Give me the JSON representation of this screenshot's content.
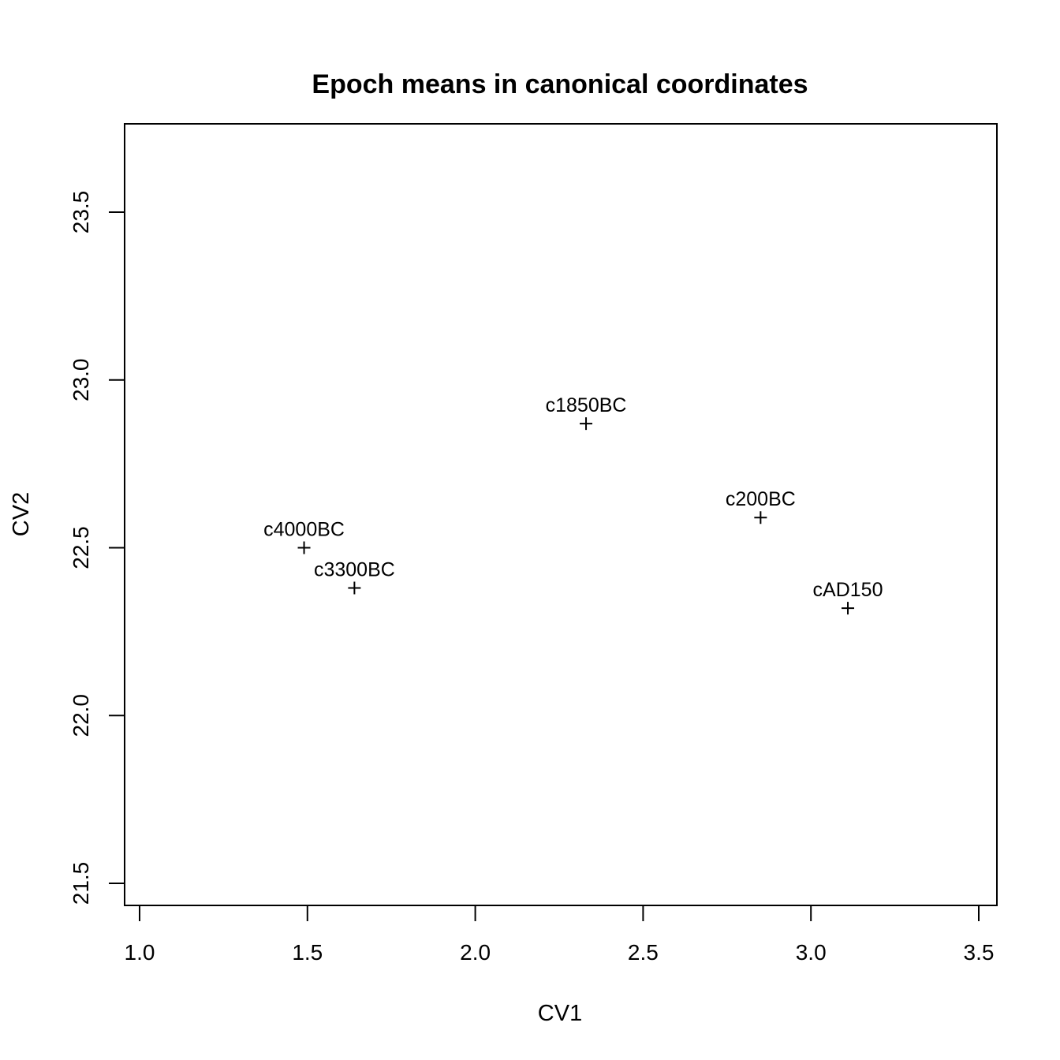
{
  "chart_data": {
    "type": "scatter",
    "title": "Epoch means in canonical coordinates",
    "xlabel": "CV1",
    "ylabel": "CV2",
    "xlim": [
      1.0,
      3.5
    ],
    "ylim": [
      21.5,
      23.5
    ],
    "x_ticks": [
      1.0,
      1.5,
      2.0,
      2.5,
      3.0,
      3.5
    ],
    "y_ticks": [
      21.5,
      22.0,
      22.5,
      23.0,
      23.5
    ],
    "x_tick_labels": [
      "1.0",
      "1.5",
      "2.0",
      "2.5",
      "3.0",
      "3.5"
    ],
    "y_tick_labels": [
      "21.5",
      "22.0",
      "22.5",
      "23.0",
      "23.5"
    ],
    "grid": false,
    "marker": "+",
    "points": [
      {
        "label": "c4000BC",
        "x": 1.49,
        "y": 22.5
      },
      {
        "label": "c3300BC",
        "x": 1.64,
        "y": 22.38
      },
      {
        "label": "c1850BC",
        "x": 2.33,
        "y": 22.87
      },
      {
        "label": "c200BC",
        "x": 2.85,
        "y": 22.59
      },
      {
        "label": "cAD150",
        "x": 3.11,
        "y": 22.32
      }
    ]
  }
}
